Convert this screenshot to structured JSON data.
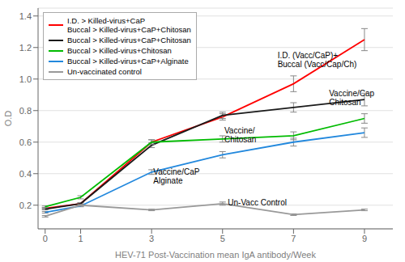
{
  "chart_data": {
    "type": "line",
    "xlabel": "HEV-71 Post-Vaccination mean IgA antibody/Week",
    "ylabel": "O.D",
    "x": [
      0,
      1,
      3,
      5,
      7,
      9
    ],
    "series": [
      {
        "name": "I.D. > Killed-virus+CaP\nBuccal > Killed-virus+CaP+Chitosan",
        "color": "#FF0000",
        "values": [
          0.18,
          0.21,
          0.6,
          0.76,
          0.97,
          1.25
        ],
        "yerr": [
          0.005,
          0.005,
          0.015,
          0.02,
          0.05,
          0.07
        ]
      },
      {
        "name": "Buccal > Killed-virus+CaP+Chitosan",
        "color": "#1a1a1a",
        "values": [
          0.175,
          0.21,
          0.58,
          0.77,
          0.82,
          0.87
        ],
        "yerr": [
          0.005,
          0.005,
          0.015,
          0.02,
          0.03,
          0.04
        ]
      },
      {
        "name": "Buccal > Killed-virus+Chitosan",
        "color": "#00BB00",
        "values": [
          0.19,
          0.25,
          0.6,
          0.62,
          0.64,
          0.75
        ],
        "yerr": [
          0.005,
          0.01,
          0.015,
          0.02,
          0.025,
          0.03
        ]
      },
      {
        "name": "Buccal > Killed-virus+CaP+Alginate",
        "color": "#2288DD",
        "values": [
          0.155,
          0.195,
          0.41,
          0.52,
          0.6,
          0.66
        ],
        "yerr": [
          0.005,
          0.005,
          0.015,
          0.02,
          0.025,
          0.03
        ]
      },
      {
        "name": "Un-vaccinated control",
        "color": "#999999",
        "values": [
          0.13,
          0.2,
          0.17,
          0.21,
          0.14,
          0.17
        ],
        "yerr": [
          0.005,
          0.005,
          0.005,
          0.01,
          0.005,
          0.005
        ]
      }
    ],
    "annotations": [
      {
        "text": "I.D. (Vacc/CaP)+\nBuccal (Vacc/Cap/Ch)",
        "x": 6.55,
        "y": 1.12
      },
      {
        "text": "Vaccine/Cap\nChitosan",
        "x": 8.0,
        "y": 0.88
      },
      {
        "text": "Vaccine/\nChitosan",
        "x": 5.05,
        "y": 0.645
      },
      {
        "text": "Vaccine/CaP\nAlginate",
        "x": 3.05,
        "y": 0.385
      },
      {
        "text": "Un-Vacc Control",
        "x": 5.15,
        "y": 0.215
      }
    ],
    "xlim": [
      -0.2,
      9.8
    ],
    "ylim": [
      0.05,
      1.45
    ],
    "xticks": [
      0,
      1,
      3,
      5,
      7,
      9
    ],
    "yticks": [
      0.2,
      0.4,
      0.6,
      0.8,
      {
        "value": 1,
        "label": "1.0"
      },
      1.2,
      1.4
    ],
    "grid": "y",
    "legend": "upper left"
  }
}
